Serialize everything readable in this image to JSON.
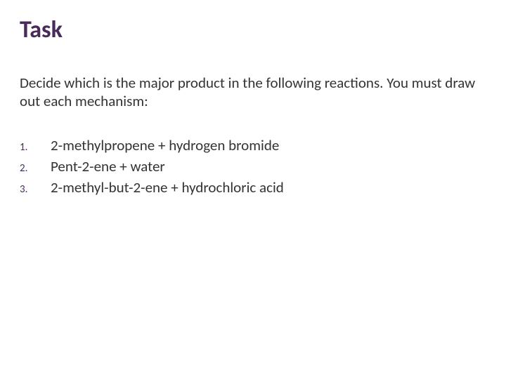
{
  "title": "Task",
  "intro": "Decide which is the major product in the following reactions. You must draw out each mechanism:",
  "items": [
    {
      "num": "1.",
      "text": "2-methylpropene + hydrogen bromide"
    },
    {
      "num": "2.",
      "text": "Pent-2-ene + water"
    },
    {
      "num": "3.",
      "text": "2-methyl-but-2-ene + hydrochloric acid"
    }
  ],
  "colors": {
    "title": "#4a2a5a",
    "body": "#333333",
    "background": "#ffffff"
  },
  "fonts": {
    "title_size": 34,
    "body_size": 21,
    "num_size": 15
  }
}
